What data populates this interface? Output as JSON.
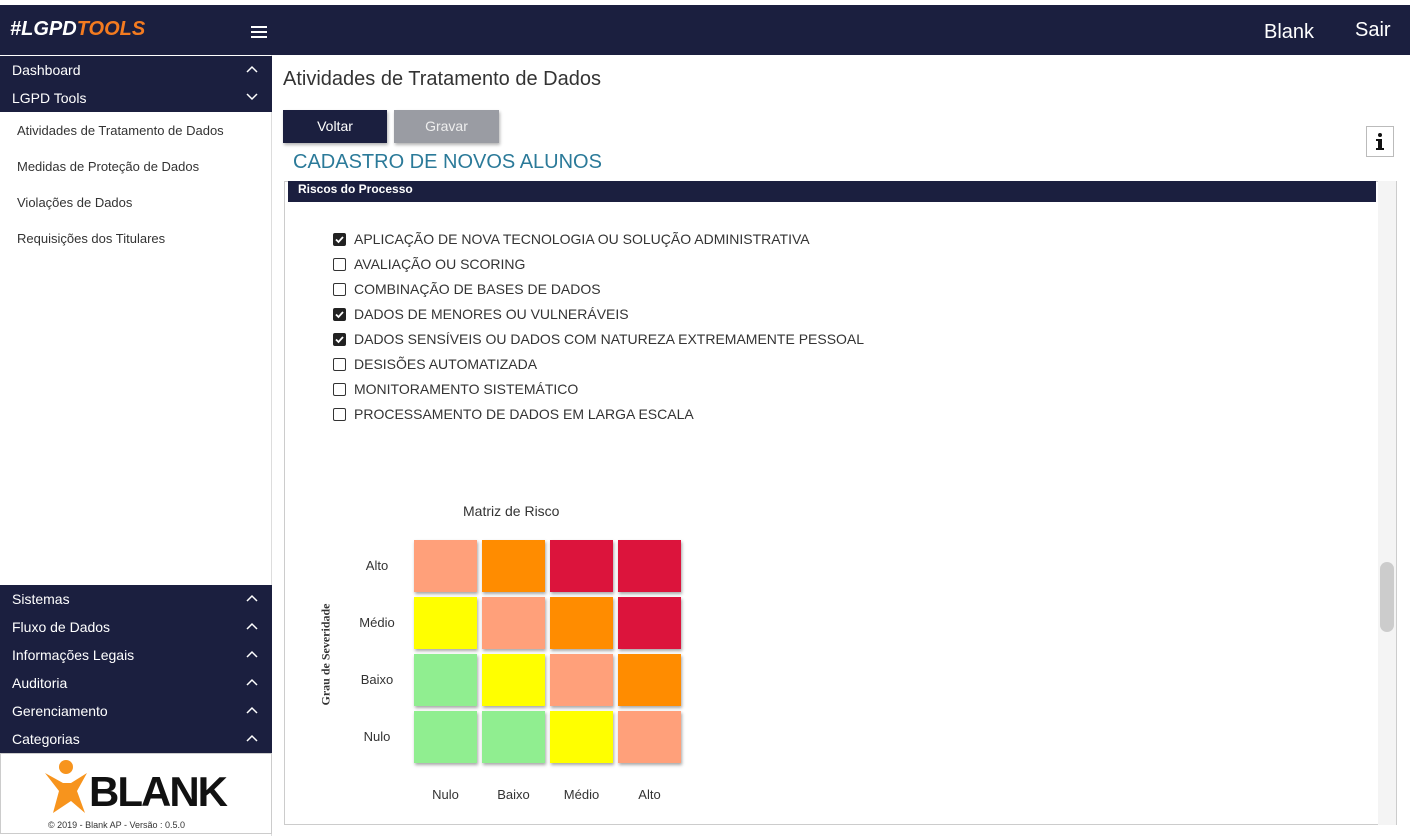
{
  "header": {
    "logo_prefix": "#LGPD",
    "logo_suffix": "TOOLS",
    "user": "Blank",
    "logout": "Sair"
  },
  "sidebar": {
    "top_menu": [
      {
        "label": "Dashboard",
        "expanded": false
      },
      {
        "label": "LGPD Tools",
        "expanded": true
      }
    ],
    "submenu": [
      "Atividades de Tratamento de Dados",
      "Medidas de Proteção de Dados",
      "Violações de Dados",
      "Requisições dos Titulares"
    ],
    "bottom_menu": [
      {
        "label": "Sistemas",
        "expanded": false
      },
      {
        "label": "Fluxo de Dados",
        "expanded": false
      },
      {
        "label": "Informações Legais",
        "expanded": false
      },
      {
        "label": "Auditoria",
        "expanded": false
      },
      {
        "label": "Gerenciamento",
        "expanded": false
      },
      {
        "label": "Categorias",
        "expanded": false
      }
    ],
    "brand": "BLANK",
    "footer": "© 2019 - Blank AP - Versão : 0.5.0"
  },
  "main": {
    "page_title": "Atividades de Tratamento de Dados",
    "buttons": {
      "back": "Voltar",
      "save": "Gravar"
    },
    "form_title": "CADASTRO DE NOVOS ALUNOS",
    "section_title": "Riscos do Processo",
    "risks": [
      {
        "label": "APLICAÇÃO DE NOVA TECNOLOGIA OU SOLUÇÃO ADMINISTRATIVA",
        "checked": true
      },
      {
        "label": "AVALIAÇÃO OU SCORING",
        "checked": false
      },
      {
        "label": "COMBINAÇÃO DE BASES DE DADOS",
        "checked": false
      },
      {
        "label": "DADOS DE MENORES OU VULNERÁVEIS",
        "checked": true
      },
      {
        "label": "DADOS SENSÍVEIS OU DADOS COM NATUREZA EXTREMAMENTE PESSOAL",
        "checked": true
      },
      {
        "label": "DESISÕES AUTOMATIZADA",
        "checked": false
      },
      {
        "label": "MONITORAMENTO SISTEMÁTICO",
        "checked": false
      },
      {
        "label": "PROCESSAMENTO DE DADOS EM LARGA ESCALA",
        "checked": false
      }
    ],
    "matrix": {
      "title": "Matriz de Risco",
      "y_label": "Grau de Severidade",
      "rows": [
        "Alto",
        "Médio",
        "Baixo",
        "Nulo"
      ],
      "columns": [
        "Nulo",
        "Baixo",
        "Médio",
        "Alto"
      ],
      "cell_colors": [
        [
          "#ffa07a",
          "#ff8c00",
          "#dc143c",
          "#dc143c"
        ],
        [
          "#ffff00",
          "#ffa07a",
          "#ff8c00",
          "#dc143c"
        ],
        [
          "#90ee90",
          "#ffff00",
          "#ffa07a",
          "#ff8c00"
        ],
        [
          "#90ee90",
          "#90ee90",
          "#ffff00",
          "#ffa07a"
        ]
      ]
    }
  }
}
